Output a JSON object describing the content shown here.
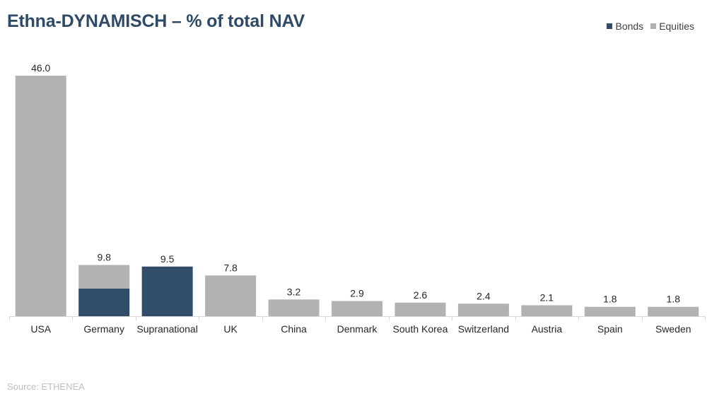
{
  "title": "Ethna-DYNAMISCH – % of total NAV",
  "source": "Source: ETHENEA",
  "legend": [
    {
      "label": "Bonds",
      "color": "#324d69"
    },
    {
      "label": "Equities",
      "color": "#b2b2b2"
    }
  ],
  "chart_data": {
    "type": "bar",
    "stacked": true,
    "title": "Ethna-DYNAMISCH – % of total NAV",
    "xlabel": "",
    "ylabel": "",
    "ylim": [
      0,
      46
    ],
    "grid": false,
    "legend_position": "top-right",
    "categories": [
      "USA",
      "Germany",
      "Supranational",
      "UK",
      "China",
      "Denmark",
      "South Korea",
      "Switzerland",
      "Austria",
      "Spain",
      "Sweden"
    ],
    "series": [
      {
        "name": "Bonds",
        "color": "#324d69",
        "values": [
          0,
          5.3,
          9.5,
          0,
          0,
          0,
          0,
          0,
          0,
          0,
          0
        ]
      },
      {
        "name": "Equities",
        "color": "#b2b2b2",
        "values": [
          46.0,
          4.5,
          0,
          7.8,
          3.2,
          2.9,
          2.6,
          2.4,
          2.1,
          1.8,
          1.8
        ]
      }
    ],
    "totals": [
      46.0,
      9.8,
      9.5,
      7.8,
      3.2,
      2.9,
      2.6,
      2.4,
      2.1,
      1.8,
      1.8
    ],
    "total_labels": [
      "46.0",
      "9.8",
      "9.5",
      "7.8",
      "3.2",
      "2.9",
      "2.6",
      "2.4",
      "2.1",
      "1.8",
      "1.8"
    ]
  }
}
